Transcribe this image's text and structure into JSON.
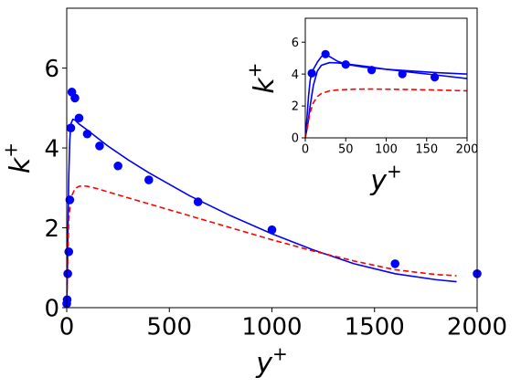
{
  "chart_data": [
    {
      "id": "main",
      "type": "line+scatter",
      "title": "",
      "xlabel": "y",
      "xlabel_sup": "+",
      "ylabel": "k",
      "ylabel_sup": "+",
      "xlim": [
        0,
        2000
      ],
      "ylim": [
        0,
        7.5
      ],
      "xticks": [
        0,
        500,
        1000,
        1500,
        2000
      ],
      "yticks": [
        0,
        2,
        4,
        6
      ],
      "grid": false,
      "series": [
        {
          "kind": "scatter",
          "color": "#0000ff",
          "x": [
            0,
            2,
            5,
            10,
            15,
            20,
            25,
            40,
            60,
            100,
            160,
            250,
            400,
            640,
            1000,
            1600,
            2000
          ],
          "y": [
            0.1,
            0.2,
            0.85,
            1.4,
            2.7,
            4.5,
            5.4,
            5.25,
            4.75,
            4.35,
            4.05,
            3.55,
            3.2,
            2.65,
            1.95,
            1.1,
            0.85
          ]
        },
        {
          "kind": "line",
          "color": "#0000ff",
          "dash": "solid",
          "x": [
            0,
            3,
            6,
            10,
            15,
            20,
            30,
            40,
            60,
            100,
            150,
            200,
            300,
            400,
            600,
            800,
            1000,
            1200,
            1400,
            1600,
            1800,
            1900
          ],
          "y": [
            0,
            0.8,
            2.0,
            3.3,
            4.2,
            4.6,
            4.72,
            4.7,
            4.6,
            4.45,
            4.25,
            4.05,
            3.7,
            3.38,
            2.8,
            2.3,
            1.85,
            1.45,
            1.1,
            0.85,
            0.7,
            0.65
          ]
        },
        {
          "kind": "line",
          "color": "#ff0000",
          "dash": "dashed",
          "x": [
            0,
            5,
            10,
            20,
            40,
            60,
            80,
            100,
            150,
            200,
            300,
            400,
            600,
            800,
            1000,
            1200,
            1400,
            1600,
            1800,
            1900
          ],
          "y": [
            0,
            1.2,
            2.2,
            2.75,
            2.98,
            3.04,
            3.05,
            3.04,
            2.98,
            2.9,
            2.75,
            2.6,
            2.3,
            2.0,
            1.7,
            1.42,
            1.17,
            0.95,
            0.83,
            0.8
          ]
        }
      ]
    },
    {
      "id": "inset",
      "type": "line+scatter",
      "title": "",
      "xlabel": "y",
      "xlabel_sup": "+",
      "ylabel": "k",
      "ylabel_sup": "+",
      "xlim": [
        0,
        200
      ],
      "ylim": [
        0,
        7.5
      ],
      "xticks": [
        0,
        50,
        100,
        150,
        200
      ],
      "yticks": [
        0,
        2,
        4,
        6
      ],
      "grid": false,
      "series": [
        {
          "kind": "scatter",
          "color": "#0000ff",
          "x": [
            8,
            25,
            50,
            82,
            120,
            160
          ],
          "y": [
            4.05,
            5.25,
            4.6,
            4.25,
            4.0,
            3.8
          ]
        },
        {
          "kind": "line",
          "color": "#0000ff",
          "dash": "solid",
          "x": [
            0,
            2,
            4,
            6,
            8,
            10,
            15,
            20,
            25,
            30,
            40,
            50,
            70,
            100,
            130,
            160,
            200
          ],
          "y": [
            0,
            1.2,
            2.6,
            3.6,
            4.1,
            4.3,
            4.75,
            5.1,
            5.25,
            5.1,
            4.8,
            4.62,
            4.45,
            4.3,
            4.2,
            4.1,
            4.0
          ]
        },
        {
          "kind": "line",
          "color": "#0000ff",
          "dash": "solid",
          "x": [
            0,
            3,
            6,
            10,
            15,
            20,
            30,
            40,
            60,
            80,
            100,
            130,
            160,
            200
          ],
          "y": [
            0,
            0.8,
            2.0,
            3.3,
            4.2,
            4.55,
            4.72,
            4.7,
            4.58,
            4.45,
            4.3,
            4.12,
            3.95,
            3.72
          ]
        },
        {
          "kind": "line",
          "color": "#ff0000",
          "dash": "dashed",
          "x": [
            0,
            3,
            6,
            10,
            15,
            20,
            30,
            40,
            60,
            80,
            100,
            130,
            160,
            200
          ],
          "y": [
            0,
            0.8,
            1.6,
            2.2,
            2.6,
            2.78,
            2.95,
            3.0,
            3.05,
            3.06,
            3.05,
            3.03,
            3.0,
            2.95
          ]
        }
      ]
    }
  ]
}
